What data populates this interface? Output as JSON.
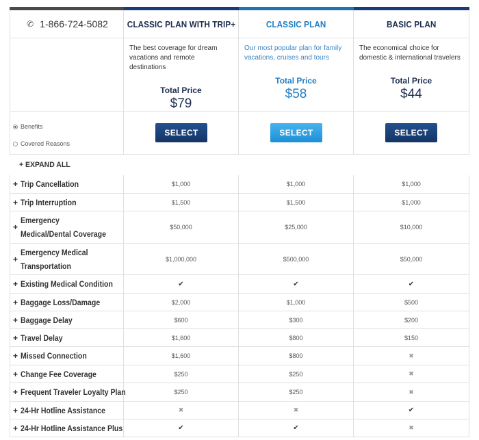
{
  "phone": "1-866-724-5082",
  "plans": [
    {
      "name": "CLASSIC PLAN WITH TRIP+",
      "description": "The best coverage for dream vacations and remote destinations",
      "total_label": "Total Price",
      "price": "$79",
      "select_label": "SELECT",
      "accent": "#173e78"
    },
    {
      "name": "CLASSIC PLAN",
      "description": "Our most popular plan for family vacations, cruises and tours",
      "total_label": "Total Price",
      "price": "$58",
      "select_label": "SELECT",
      "accent": "#1c74b8"
    },
    {
      "name": "BASIC PLAN",
      "description": "The economical choice for domestic & international travelers",
      "total_label": "Total Price",
      "price": "$44",
      "select_label": "SELECT",
      "accent": "#173e78"
    }
  ],
  "view_options": [
    {
      "label": "Benefits",
      "selected": true
    },
    {
      "label": "Covered Reasons",
      "selected": false
    }
  ],
  "expand_all": "+ EXPAND ALL",
  "benefits": [
    {
      "name": "Trip Cancellation",
      "values": [
        "$1,000",
        "$1,000",
        "$1,000"
      ]
    },
    {
      "name": "Trip Interruption",
      "values": [
        "$1,500",
        "$1,500",
        "$1,000"
      ]
    },
    {
      "name": "Emergency Medical/Dental Coverage",
      "values": [
        "$50,000",
        "$25,000",
        "$10,000"
      ]
    },
    {
      "name": "Emergency Medical Transportation",
      "values": [
        "$1,000,000",
        "$500,000",
        "$50,000"
      ]
    },
    {
      "name": "Existing Medical Condition",
      "values": [
        "check",
        "check",
        "check"
      ]
    },
    {
      "name": "Baggage Loss/Damage",
      "values": [
        "$2,000",
        "$1,000",
        "$500"
      ]
    },
    {
      "name": "Baggage Delay",
      "values": [
        "$600",
        "$300",
        "$200"
      ]
    },
    {
      "name": "Travel Delay",
      "values": [
        "$1,600",
        "$800",
        "$150"
      ]
    },
    {
      "name": "Missed Connection",
      "values": [
        "$1,600",
        "$800",
        "x"
      ]
    },
    {
      "name": "Change Fee Coverage",
      "values": [
        "$250",
        "$250",
        "x"
      ]
    },
    {
      "name": "Frequent Traveler Loyalty Plan",
      "values": [
        "$250",
        "$250",
        "x"
      ]
    },
    {
      "name": "24-Hr Hotline Assistance",
      "values": [
        "x",
        "x",
        "check"
      ]
    },
    {
      "name": "24-Hr Hotline Assistance Plus",
      "values": [
        "check",
        "check",
        "x"
      ]
    }
  ]
}
